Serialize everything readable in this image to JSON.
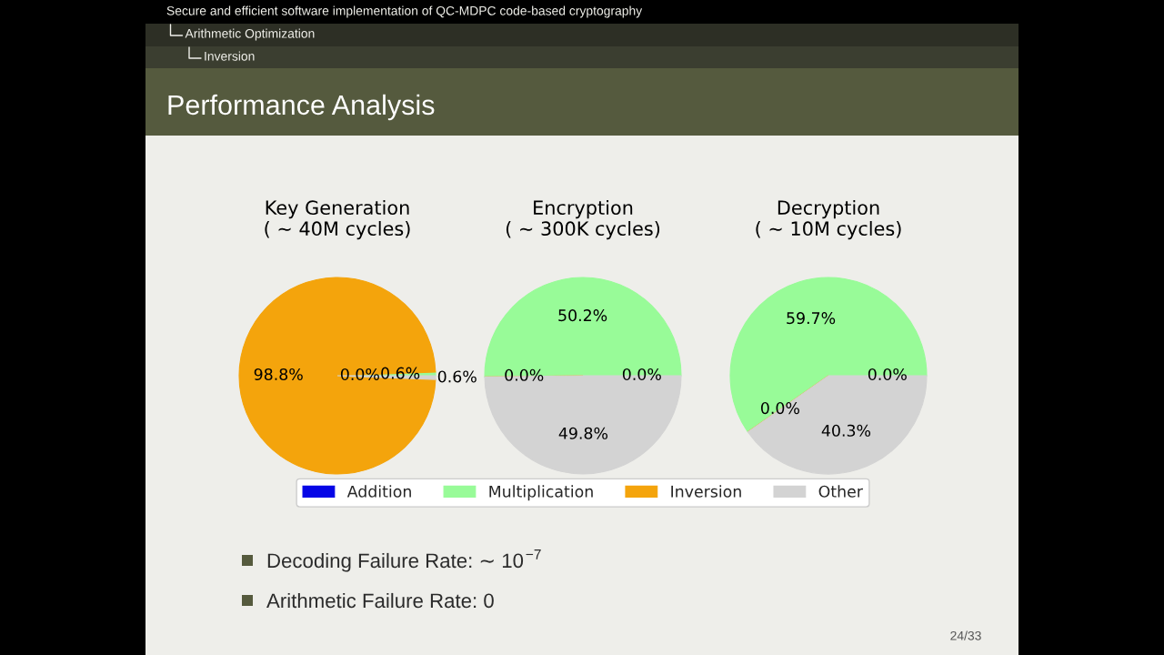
{
  "chart_data": [
    {
      "type": "other",
      "title": "Performance Analysis",
      "annotations": [
        "Secure and efficient software implementation of QC-MDPC code-based cryptography",
        "Arithmetic Optimization",
        "Inversion"
      ]
    },
    {
      "type": "pie",
      "title": "Key Generation",
      "subtitle": "( ∼ 40M cycles)",
      "categories": [
        null,
        null,
        null,
        null
      ],
      "values": [
        0.0,
        0.6,
        98.8,
        0.6
      ],
      "colors": [
        "#0505e6",
        "#98fb98",
        "#f4a40c",
        "#d3d3d3"
      ],
      "value_labels": [
        "0.0%",
        "0.6%",
        "98.8%",
        "0.6%"
      ]
    },
    {
      "type": "pie",
      "title": "Encryption",
      "subtitle": "( ∼ 300K cycles)",
      "categories": [
        "Addition",
        "Multiplication",
        "Inversion",
        "Other"
      ],
      "values": [
        0.0,
        50.2,
        0.0,
        49.8
      ],
      "colors": [
        "#0505e6",
        "#98fb98",
        "#f4a40c",
        "#d3d3d3"
      ],
      "value_labels": [
        "0.0%",
        "50.2%",
        "0.0%",
        "49.8%"
      ],
      "legend": "bottom"
    },
    {
      "type": "pie",
      "title": "Decryption",
      "subtitle": "( ∼ 10M cycles)",
      "categories": [
        null,
        null,
        null,
        null
      ],
      "values": [
        0.0,
        59.7,
        0.0,
        40.3
      ],
      "colors": [
        "#0505e6",
        "#98fb98",
        "#f4a40c",
        "#d3d3d3"
      ],
      "value_labels": [
        "0.0%",
        "59.7%",
        "0.0%",
        "40.3%"
      ]
    },
    {
      "type": "other",
      "annotations": [
        "Decoding Failure Rate: ∼ 10$^{−7}$",
        "Arithmetic Failure Rate: 0",
        "24/33"
      ]
    }
  ]
}
